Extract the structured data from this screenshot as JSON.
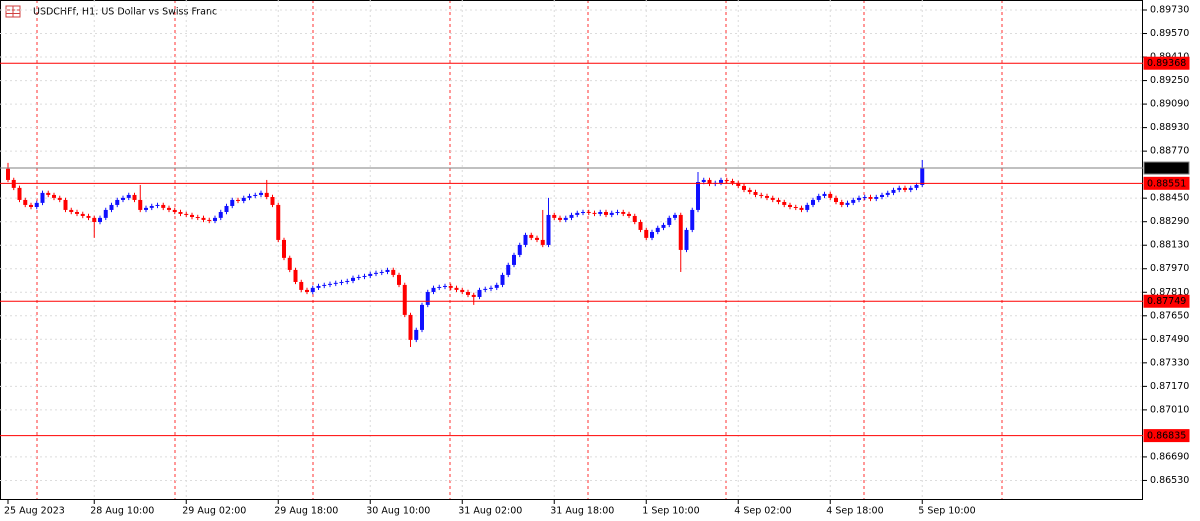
{
  "chart_data": {
    "type": "candlestick",
    "title": "USDCHFf, H1:  US Dollar vs Swiss Franc",
    "categories": [
      "25 Aug 2023",
      null,
      null,
      null,
      null,
      null,
      null,
      null,
      null,
      null,
      null,
      null,
      null,
      null,
      null,
      "28 Aug 10:00",
      null,
      null,
      null,
      null,
      null,
      null,
      null,
      null,
      null,
      null,
      null,
      null,
      null,
      null,
      null,
      "29 Aug 02:00",
      null,
      null,
      null,
      null,
      null,
      null,
      null,
      null,
      null,
      null,
      null,
      null,
      null,
      null,
      null,
      "29 Aug 18:00",
      null,
      null,
      null,
      null,
      null,
      null,
      null,
      null,
      null,
      null,
      null,
      null,
      null,
      null,
      null,
      "30 Aug 10:00",
      null,
      null,
      null,
      null,
      null,
      null,
      null,
      null,
      null,
      null,
      null,
      null,
      null,
      null,
      null,
      "31 Aug 02:00",
      null,
      null,
      null,
      null,
      null,
      null,
      null,
      null,
      null,
      null,
      null,
      null,
      null,
      null,
      null,
      "31 Aug 18:00",
      null,
      null,
      null,
      null,
      null,
      null,
      null,
      null,
      null,
      null,
      null,
      null,
      null,
      null,
      null,
      "1 Sep 10:00",
      null,
      null,
      null,
      null,
      null,
      null,
      null,
      null,
      null,
      null,
      null,
      null,
      null,
      null,
      null,
      "4 Sep 02:00",
      null,
      null,
      null,
      null,
      null,
      null,
      null,
      null,
      null,
      null,
      null,
      null,
      null,
      null,
      null,
      "4 Sep 18:00",
      null,
      null,
      null,
      null,
      null,
      null,
      null,
      null,
      null,
      null,
      null,
      null,
      null,
      null,
      null,
      "5 Sep 10:00"
    ],
    "open": [
      0.8865,
      0.88574,
      0.8852,
      0.88438,
      0.88404,
      0.8839,
      0.88418,
      0.88486,
      0.88472,
      0.88452,
      0.88438,
      0.8837,
      0.88356,
      0.88343,
      0.88329,
      0.88316,
      0.88288,
      0.88316,
      0.8837,
      0.88404,
      0.88438,
      0.88452,
      0.88472,
      0.88438,
      0.8837,
      0.88384,
      0.88397,
      0.88404,
      0.88384,
      0.8837,
      0.88356,
      0.88343,
      0.88336,
      0.88322,
      0.88316,
      0.88302,
      0.88295,
      0.88316,
      0.88356,
      0.88397,
      0.88438,
      0.88431,
      0.88452,
      0.88465,
      0.88472,
      0.88486,
      0.88458,
      0.88404,
      0.88166,
      0.88044,
      0.87962,
      0.8788,
      0.87826,
      0.87812,
      0.8784,
      0.87853,
      0.8786,
      0.87867,
      0.87874,
      0.8788,
      0.87887,
      0.87908,
      0.87914,
      0.87921,
      0.87935,
      0.87942,
      0.87948,
      0.87962,
      0.87928,
      0.8786,
      0.87656,
      0.87486,
      0.87554,
      0.87724,
      0.87812,
      0.8784,
      0.87846,
      0.87853,
      0.8784,
      0.87826,
      0.87812,
      0.87792,
      0.87778,
      0.87826,
      0.87833,
      0.8784,
      0.8786,
      0.87928,
      0.87996,
      0.88064,
      0.88132,
      0.882,
      0.8818,
      0.88166,
      0.88132,
      0.88336,
      0.88316,
      0.88302,
      0.88316,
      0.88336,
      0.8835,
      0.88356,
      0.8835,
      0.88343,
      0.88356,
      0.88336,
      0.8835,
      0.88356,
      0.88343,
      0.88329,
      0.88288,
      0.88234,
      0.8818,
      0.8822,
      0.88248,
      0.88268,
      0.88316,
      0.88336,
      0.88098,
      0.88234,
      0.8837,
      0.8856,
      0.88574,
      0.88547,
      0.88554,
      0.88574,
      0.88567,
      0.88554,
      0.88533,
      0.88506,
      0.88492,
      0.88472,
      0.88465,
      0.88452,
      0.88438,
      0.88424,
      0.88404,
      0.8839,
      0.88384,
      0.8837,
      0.88404,
      0.88438,
      0.88465,
      0.88479,
      0.88452,
      0.88424,
      0.88404,
      0.88418,
      0.88438,
      0.88452,
      0.88458,
      0.88445,
      0.88458,
      0.88472,
      0.88486,
      0.88506,
      0.8852,
      0.88506,
      0.8852,
      0.8854
    ],
    "high": [
      0.8869,
      0.88589,
      0.88535,
      0.88453,
      0.88419,
      0.88433,
      0.88501,
      0.88501,
      0.88487,
      0.88467,
      0.88453,
      0.88385,
      0.88371,
      0.88358,
      0.88344,
      0.88331,
      0.88331,
      0.88385,
      0.88419,
      0.88453,
      0.88467,
      0.88487,
      0.88487,
      0.8854,
      0.88399,
      0.88412,
      0.88419,
      0.88419,
      0.88399,
      0.88385,
      0.88371,
      0.88358,
      0.88351,
      0.88337,
      0.88331,
      0.88317,
      0.88331,
      0.88371,
      0.88412,
      0.88453,
      0.88453,
      0.88467,
      0.8848,
      0.88487,
      0.88501,
      0.88574,
      0.88473,
      0.88419,
      0.88181,
      0.88059,
      0.87977,
      0.87895,
      0.87841,
      0.87855,
      0.87868,
      0.87875,
      0.87882,
      0.87889,
      0.87895,
      0.87902,
      0.87923,
      0.87929,
      0.87936,
      0.8795,
      0.87957,
      0.87963,
      0.87977,
      0.87977,
      0.87943,
      0.87875,
      0.87671,
      0.87569,
      0.87739,
      0.87827,
      0.87855,
      0.87861,
      0.87868,
      0.87868,
      0.87855,
      0.87841,
      0.87827,
      0.87807,
      0.87841,
      0.87848,
      0.87855,
      0.87875,
      0.87943,
      0.88011,
      0.88079,
      0.88147,
      0.88215,
      0.88215,
      0.88195,
      0.8837,
      0.88452,
      0.88351,
      0.88331,
      0.88331,
      0.88351,
      0.88365,
      0.88371,
      0.88371,
      0.88365,
      0.88371,
      0.88371,
      0.88365,
      0.88371,
      0.88371,
      0.88358,
      0.88344,
      0.88303,
      0.88249,
      0.88235,
      0.88263,
      0.88283,
      0.88331,
      0.88351,
      0.88351,
      0.88249,
      0.88385,
      0.88628,
      0.88589,
      0.88589,
      0.88569,
      0.88589,
      0.88589,
      0.88582,
      0.88569,
      0.88548,
      0.88521,
      0.88507,
      0.88487,
      0.8848,
      0.88467,
      0.88453,
      0.88439,
      0.88419,
      0.88405,
      0.88399,
      0.88419,
      0.88453,
      0.8848,
      0.88494,
      0.88494,
      0.88467,
      0.88439,
      0.88433,
      0.88453,
      0.88467,
      0.88473,
      0.88473,
      0.88473,
      0.88487,
      0.88501,
      0.88521,
      0.88535,
      0.88535,
      0.88535,
      0.88555,
      0.8871
    ],
    "low": [
      0.88559,
      0.88505,
      0.88423,
      0.88389,
      0.88375,
      0.88375,
      0.88403,
      0.88457,
      0.88437,
      0.88423,
      0.88355,
      0.88341,
      0.88328,
      0.88314,
      0.88301,
      0.8818,
      0.88273,
      0.88301,
      0.88355,
      0.88389,
      0.88423,
      0.88437,
      0.88423,
      0.88355,
      0.88355,
      0.88369,
      0.88382,
      0.88369,
      0.88355,
      0.88341,
      0.88328,
      0.88321,
      0.88307,
      0.88301,
      0.88287,
      0.8828,
      0.8828,
      0.88301,
      0.88341,
      0.88382,
      0.88416,
      0.88416,
      0.88437,
      0.8845,
      0.88457,
      0.88443,
      0.88389,
      0.88151,
      0.88029,
      0.87947,
      0.87865,
      0.87811,
      0.87797,
      0.87797,
      0.87825,
      0.87838,
      0.87845,
      0.87852,
      0.87859,
      0.87865,
      0.87872,
      0.87893,
      0.87899,
      0.87906,
      0.8792,
      0.87927,
      0.87933,
      0.87913,
      0.87845,
      0.87641,
      0.87438,
      0.87471,
      0.87539,
      0.87709,
      0.87797,
      0.87825,
      0.87831,
      0.87825,
      0.87811,
      0.87797,
      0.87777,
      0.87724,
      0.87763,
      0.87811,
      0.87818,
      0.87825,
      0.87845,
      0.87913,
      0.87981,
      0.88049,
      0.88117,
      0.88165,
      0.88151,
      0.88117,
      0.88117,
      0.88301,
      0.88287,
      0.88287,
      0.88301,
      0.88321,
      0.88335,
      0.88335,
      0.88328,
      0.88328,
      0.88321,
      0.88321,
      0.88335,
      0.88328,
      0.88314,
      0.88273,
      0.88219,
      0.88165,
      0.88165,
      0.88205,
      0.88233,
      0.88253,
      0.88301,
      0.87948,
      0.88083,
      0.88219,
      0.88355,
      0.88545,
      0.88532,
      0.88532,
      0.88539,
      0.88552,
      0.88539,
      0.88518,
      0.88491,
      0.88477,
      0.88457,
      0.8845,
      0.88437,
      0.88423,
      0.88409,
      0.88389,
      0.88375,
      0.88369,
      0.88355,
      0.88355,
      0.88389,
      0.88423,
      0.8845,
      0.88437,
      0.88409,
      0.88389,
      0.88389,
      0.88403,
      0.88423,
      0.88437,
      0.8843,
      0.8843,
      0.88443,
      0.88457,
      0.88471,
      0.88491,
      0.88491,
      0.88491,
      0.88505,
      0.88525
    ],
    "close": [
      0.88574,
      0.8852,
      0.88438,
      0.88404,
      0.8839,
      0.88418,
      0.88486,
      0.88472,
      0.88452,
      0.88438,
      0.8837,
      0.88356,
      0.88343,
      0.88329,
      0.88316,
      0.88288,
      0.88316,
      0.8837,
      0.88404,
      0.88438,
      0.88452,
      0.88472,
      0.88438,
      0.8837,
      0.88384,
      0.88397,
      0.88404,
      0.88384,
      0.8837,
      0.88356,
      0.88343,
      0.88336,
      0.88322,
      0.88316,
      0.88302,
      0.88295,
      0.88316,
      0.88356,
      0.88397,
      0.88438,
      0.88431,
      0.88452,
      0.88465,
      0.88472,
      0.88486,
      0.88458,
      0.88404,
      0.88166,
      0.88044,
      0.87962,
      0.8788,
      0.87826,
      0.87812,
      0.8784,
      0.87853,
      0.8786,
      0.87867,
      0.87874,
      0.8788,
      0.87887,
      0.87908,
      0.87914,
      0.87921,
      0.87935,
      0.87942,
      0.87948,
      0.87962,
      0.87928,
      0.8786,
      0.87656,
      0.87486,
      0.87554,
      0.87724,
      0.87812,
      0.8784,
      0.87846,
      0.87853,
      0.8784,
      0.87826,
      0.87812,
      0.87792,
      0.87778,
      0.87826,
      0.87833,
      0.8784,
      0.8786,
      0.87928,
      0.87996,
      0.88064,
      0.88132,
      0.882,
      0.8818,
      0.88166,
      0.88132,
      0.88336,
      0.88316,
      0.88302,
      0.88316,
      0.88336,
      0.8835,
      0.88356,
      0.8835,
      0.88343,
      0.88356,
      0.88336,
      0.8835,
      0.88356,
      0.88343,
      0.88329,
      0.88288,
      0.88234,
      0.8818,
      0.8822,
      0.88248,
      0.88268,
      0.88316,
      0.88336,
      0.88098,
      0.88234,
      0.8837,
      0.8856,
      0.88574,
      0.88547,
      0.88554,
      0.88574,
      0.88567,
      0.88554,
      0.88533,
      0.88506,
      0.88492,
      0.88472,
      0.88465,
      0.88452,
      0.88438,
      0.88424,
      0.88404,
      0.8839,
      0.88384,
      0.8837,
      0.88404,
      0.88438,
      0.88465,
      0.88479,
      0.88452,
      0.88424,
      0.88404,
      0.88418,
      0.88438,
      0.88452,
      0.88458,
      0.88445,
      0.88458,
      0.88472,
      0.88486,
      0.88506,
      0.8852,
      0.88506,
      0.8852,
      0.8854,
      0.88655
    ],
    "up_color": "#1010ff",
    "down_color": "#ff0000",
    "ylim": [
      0.86397,
      0.89798
    ],
    "yticks": [
      {
        "value": 0.8973,
        "label": "0.89730"
      },
      {
        "value": 0.8957,
        "label": "0.89570"
      },
      {
        "value": 0.8941,
        "label": "0.89410"
      },
      {
        "value": 0.8925,
        "label": "0.89250"
      },
      {
        "value": 0.8909,
        "label": "0.89090"
      },
      {
        "value": 0.8893,
        "label": "0.88930"
      },
      {
        "value": 0.8877,
        "label": "0.88770"
      },
      {
        "value": 0.8845,
        "label": "0.88450"
      },
      {
        "value": 0.8829,
        "label": "0.88290"
      },
      {
        "value": 0.8813,
        "label": "0.88130"
      },
      {
        "value": 0.8797,
        "label": "0.87970"
      },
      {
        "value": 0.8781,
        "label": "0.87810"
      },
      {
        "value": 0.8765,
        "label": "0.87650"
      },
      {
        "value": 0.8749,
        "label": "0.87490"
      },
      {
        "value": 0.8733,
        "label": "0.87330"
      },
      {
        "value": 0.8717,
        "label": "0.87170"
      },
      {
        "value": 0.8701,
        "label": "0.87010"
      },
      {
        "value": 0.8669,
        "label": "0.86690"
      },
      {
        "value": 0.8653,
        "label": "0.86530"
      }
    ],
    "grid": true,
    "levels": [
      0.89368,
      0.88551,
      0.87749,
      0.86835
    ],
    "level_color": "#ff0000",
    "price_line": 0.88655,
    "price_line_color": "#808080"
  }
}
